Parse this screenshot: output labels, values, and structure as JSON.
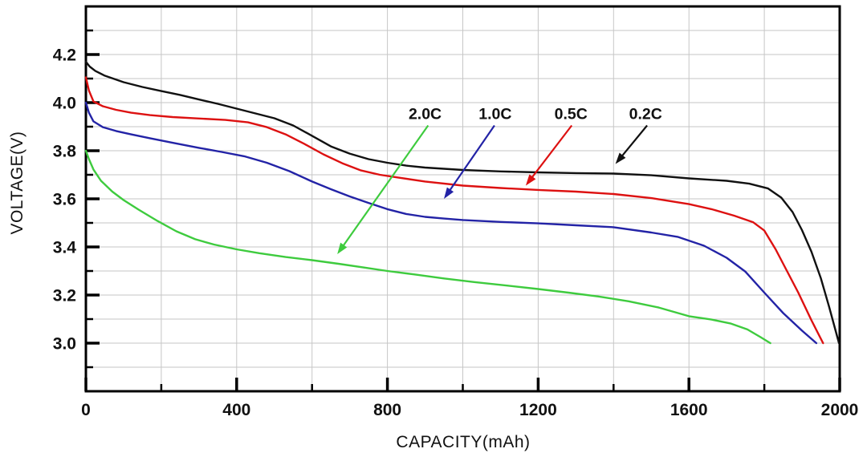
{
  "chart_data": {
    "type": "line",
    "title": "",
    "xlabel": "CAPACITY(mAh)",
    "ylabel": "VOLTAGE(V)",
    "xlim": [
      0,
      2000
    ],
    "ylim": [
      2.8,
      4.4
    ],
    "grid": true,
    "grid_color": "#c6c6c6",
    "axis_color": "#000000",
    "background_color": "#ffffff",
    "x_tick_labels": [
      0,
      400,
      800,
      1200,
      1600,
      2000
    ],
    "x_minor_ticks": [
      200,
      600,
      1000,
      1400,
      1800
    ],
    "y_tick_labels": [
      3.0,
      3.2,
      3.4,
      3.6,
      3.8,
      4.0,
      4.2
    ],
    "y_minor_ticks": [
      2.9,
      3.1,
      3.3,
      3.5,
      3.7,
      3.9,
      4.1,
      4.3
    ],
    "x_gridlines": [
      200,
      400,
      600,
      800,
      1000,
      1200,
      1400,
      1600,
      1800
    ],
    "y_gridlines": [
      2.9,
      3.0,
      3.1,
      3.2,
      3.3,
      3.4,
      3.5,
      3.6,
      3.7,
      3.8,
      3.9,
      4.0,
      4.1,
      4.2,
      4.3
    ],
    "series": [
      {
        "name": "0.2C",
        "color": "#111111",
        "points": [
          [
            0,
            4.17
          ],
          [
            10,
            4.15
          ],
          [
            25,
            4.132
          ],
          [
            50,
            4.112
          ],
          [
            100,
            4.085
          ],
          [
            150,
            4.065
          ],
          [
            200,
            4.048
          ],
          [
            250,
            4.032
          ],
          [
            300,
            4.013
          ],
          [
            350,
            3.995
          ],
          [
            400,
            3.975
          ],
          [
            450,
            3.955
          ],
          [
            500,
            3.935
          ],
          [
            550,
            3.905
          ],
          [
            600,
            3.862
          ],
          [
            650,
            3.818
          ],
          [
            700,
            3.788
          ],
          [
            750,
            3.765
          ],
          [
            800,
            3.75
          ],
          [
            850,
            3.738
          ],
          [
            900,
            3.73
          ],
          [
            1000,
            3.72
          ],
          [
            1100,
            3.714
          ],
          [
            1200,
            3.71
          ],
          [
            1300,
            3.707
          ],
          [
            1400,
            3.705
          ],
          [
            1500,
            3.698
          ],
          [
            1600,
            3.685
          ],
          [
            1700,
            3.675
          ],
          [
            1760,
            3.663
          ],
          [
            1810,
            3.643
          ],
          [
            1845,
            3.605
          ],
          [
            1875,
            3.545
          ],
          [
            1900,
            3.47
          ],
          [
            1925,
            3.38
          ],
          [
            1950,
            3.27
          ],
          [
            1972,
            3.15
          ],
          [
            1998,
            3.0
          ]
        ]
      },
      {
        "name": "0.5C",
        "color": "#dd1111",
        "points": [
          [
            0,
            4.105
          ],
          [
            8,
            4.05
          ],
          [
            20,
            4.005
          ],
          [
            45,
            3.985
          ],
          [
            80,
            3.97
          ],
          [
            120,
            3.958
          ],
          [
            170,
            3.948
          ],
          [
            230,
            3.94
          ],
          [
            300,
            3.934
          ],
          [
            370,
            3.928
          ],
          [
            430,
            3.918
          ],
          [
            480,
            3.898
          ],
          [
            530,
            3.868
          ],
          [
            580,
            3.828
          ],
          [
            630,
            3.785
          ],
          [
            680,
            3.748
          ],
          [
            730,
            3.718
          ],
          [
            780,
            3.7
          ],
          [
            830,
            3.688
          ],
          [
            900,
            3.672
          ],
          [
            1000,
            3.655
          ],
          [
            1100,
            3.645
          ],
          [
            1200,
            3.637
          ],
          [
            1300,
            3.63
          ],
          [
            1400,
            3.62
          ],
          [
            1500,
            3.603
          ],
          [
            1600,
            3.578
          ],
          [
            1660,
            3.557
          ],
          [
            1720,
            3.53
          ],
          [
            1770,
            3.503
          ],
          [
            1800,
            3.468
          ],
          [
            1830,
            3.39
          ],
          [
            1860,
            3.3
          ],
          [
            1890,
            3.21
          ],
          [
            1925,
            3.095
          ],
          [
            1956,
            3.0
          ]
        ]
      },
      {
        "name": "1.0C",
        "color": "#2323a6",
        "points": [
          [
            0,
            4.0
          ],
          [
            8,
            3.958
          ],
          [
            20,
            3.922
          ],
          [
            45,
            3.898
          ],
          [
            80,
            3.882
          ],
          [
            120,
            3.868
          ],
          [
            170,
            3.852
          ],
          [
            230,
            3.833
          ],
          [
            300,
            3.812
          ],
          [
            360,
            3.795
          ],
          [
            420,
            3.777
          ],
          [
            480,
            3.75
          ],
          [
            540,
            3.715
          ],
          [
            600,
            3.672
          ],
          [
            650,
            3.64
          ],
          [
            700,
            3.61
          ],
          [
            750,
            3.583
          ],
          [
            800,
            3.557
          ],
          [
            850,
            3.537
          ],
          [
            900,
            3.525
          ],
          [
            950,
            3.518
          ],
          [
            1000,
            3.512
          ],
          [
            1100,
            3.504
          ],
          [
            1200,
            3.498
          ],
          [
            1300,
            3.49
          ],
          [
            1400,
            3.482
          ],
          [
            1500,
            3.46
          ],
          [
            1570,
            3.442
          ],
          [
            1640,
            3.405
          ],
          [
            1700,
            3.355
          ],
          [
            1750,
            3.297
          ],
          [
            1800,
            3.21
          ],
          [
            1850,
            3.125
          ],
          [
            1900,
            3.052
          ],
          [
            1938,
            3.0
          ]
        ]
      },
      {
        "name": "2.0C",
        "color": "#3ecb3e",
        "points": [
          [
            0,
            3.8
          ],
          [
            8,
            3.765
          ],
          [
            20,
            3.722
          ],
          [
            40,
            3.675
          ],
          [
            70,
            3.63
          ],
          [
            100,
            3.595
          ],
          [
            140,
            3.555
          ],
          [
            190,
            3.508
          ],
          [
            240,
            3.465
          ],
          [
            290,
            3.432
          ],
          [
            340,
            3.41
          ],
          [
            400,
            3.39
          ],
          [
            460,
            3.374
          ],
          [
            530,
            3.358
          ],
          [
            600,
            3.345
          ],
          [
            670,
            3.33
          ],
          [
            740,
            3.314
          ],
          [
            800,
            3.3
          ],
          [
            870,
            3.286
          ],
          [
            950,
            3.269
          ],
          [
            1030,
            3.254
          ],
          [
            1120,
            3.239
          ],
          [
            1200,
            3.225
          ],
          [
            1280,
            3.21
          ],
          [
            1360,
            3.194
          ],
          [
            1440,
            3.174
          ],
          [
            1520,
            3.148
          ],
          [
            1600,
            3.112
          ],
          [
            1660,
            3.098
          ],
          [
            1710,
            3.082
          ],
          [
            1755,
            3.057
          ],
          [
            1790,
            3.025
          ],
          [
            1816,
            3.0
          ]
        ]
      }
    ],
    "annotations": [
      {
        "label": "2.0C",
        "color": "#3ecb3e",
        "x": 900,
        "y": 3.955,
        "arrow_from": [
          908,
          3.905
        ],
        "arrow_to": [
          667,
          3.37
        ]
      },
      {
        "label": "1.0C",
        "color": "#2323a6",
        "x": 1086,
        "y": 3.955,
        "arrow_from": [
          1084,
          3.905
        ],
        "arrow_to": [
          950,
          3.6
        ]
      },
      {
        "label": "0.5C",
        "color": "#dd1111",
        "x": 1287,
        "y": 3.955,
        "arrow_from": [
          1289,
          3.905
        ],
        "arrow_to": [
          1167,
          3.655
        ]
      },
      {
        "label": "0.2C",
        "color": "#111111",
        "x": 1485,
        "y": 3.955,
        "arrow_from": [
          1489,
          3.905
        ],
        "arrow_to": [
          1405,
          3.745
        ]
      }
    ]
  }
}
